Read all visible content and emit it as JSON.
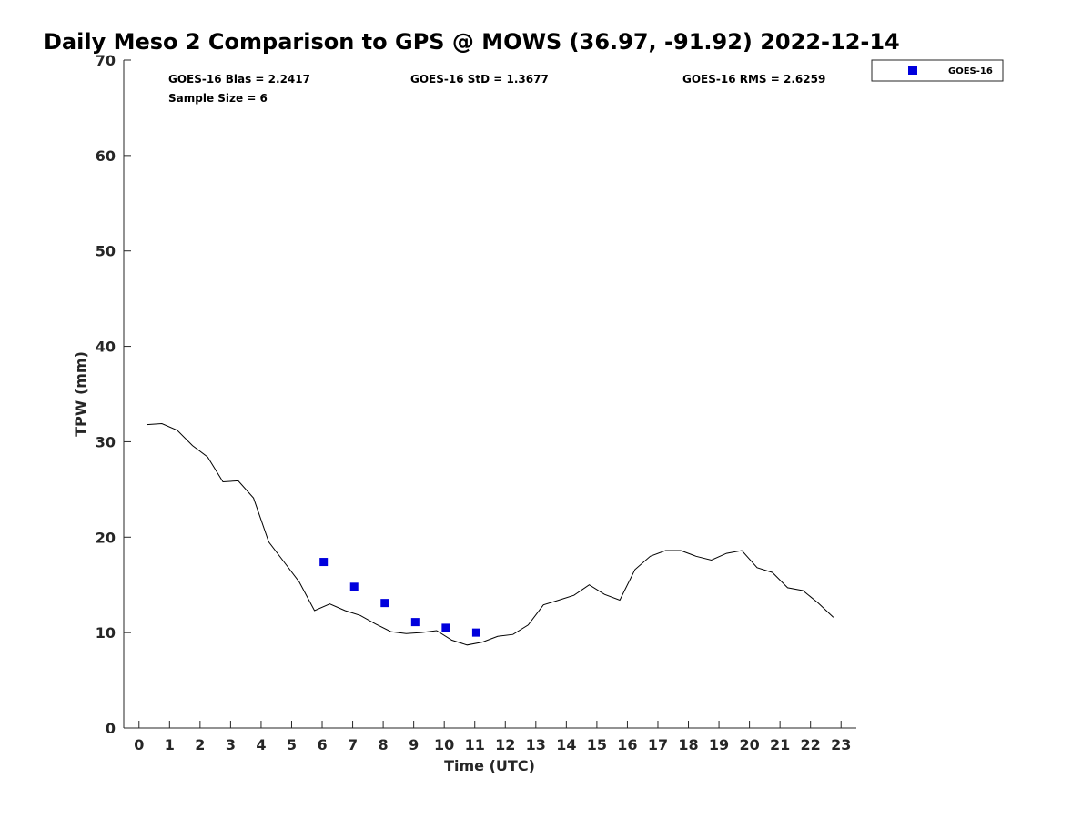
{
  "chart_data": {
    "type": "scatter",
    "title": "Daily Meso 2 Comparison to GPS @ MOWS (36.97, -91.92) 2022-12-14",
    "xlabel": "Time (UTC)",
    "ylabel": "TPW (mm)",
    "xlim": [
      -0.5,
      23.5
    ],
    "ylim": [
      0,
      70
    ],
    "xticks": [
      "0",
      "1",
      "2",
      "3",
      "4",
      "5",
      "6",
      "7",
      "8",
      "9",
      "10",
      "11",
      "12",
      "13",
      "14",
      "15",
      "16",
      "17",
      "18",
      "19",
      "20",
      "21",
      "22",
      "23"
    ],
    "yticks": [
      "0",
      "10",
      "20",
      "30",
      "40",
      "50",
      "60",
      "70"
    ],
    "grid": false,
    "legend_position": "top-right",
    "stats": {
      "bias": "GOES-16 Bias = 2.2417",
      "std": "GOES-16 StD = 1.3677",
      "rms": "GOES-16 RMS = 2.6259",
      "sample": "Sample Size = 6"
    },
    "series": [
      {
        "kind": "line",
        "color": "#000000",
        "x": [
          0.25,
          0.75,
          1.25,
          1.75,
          2.25,
          2.75,
          3.25,
          3.75,
          4.25,
          4.75,
          5.25,
          5.75,
          6.25,
          6.75,
          7.25,
          7.75,
          8.25,
          8.75,
          9.25,
          9.75,
          10.25,
          10.75,
          11.25,
          11.75,
          12.25,
          12.75,
          13.25,
          13.75,
          14.25,
          14.75,
          15.25,
          15.75,
          16.25,
          16.75,
          17.25,
          17.75,
          18.25,
          18.75,
          19.25,
          19.75,
          20.25,
          20.75,
          21.25,
          21.75,
          22.25,
          22.75
        ],
        "y": [
          31.8,
          31.9,
          31.2,
          29.6,
          28.4,
          25.8,
          25.9,
          24.1,
          19.5,
          17.4,
          15.3,
          12.3,
          13.0,
          12.3,
          11.8,
          10.9,
          10.1,
          9.9,
          10.0,
          10.2,
          9.2,
          8.7,
          9.0,
          9.6,
          9.8,
          10.8,
          12.9,
          13.4,
          13.9,
          15.0,
          14.0,
          13.4,
          16.6,
          18.0,
          18.6,
          18.6,
          18.0,
          17.6,
          18.3,
          18.6,
          16.8,
          16.3,
          14.7,
          14.4,
          13.1,
          11.6
        ]
      },
      {
        "name": "GOES-16",
        "kind": "scatter",
        "marker": "square",
        "color": "#0000dd",
        "x": [
          6.05,
          7.05,
          8.05,
          9.05,
          10.05,
          11.05
        ],
        "y": [
          17.4,
          14.8,
          13.1,
          11.1,
          10.5,
          10.0
        ]
      }
    ]
  }
}
